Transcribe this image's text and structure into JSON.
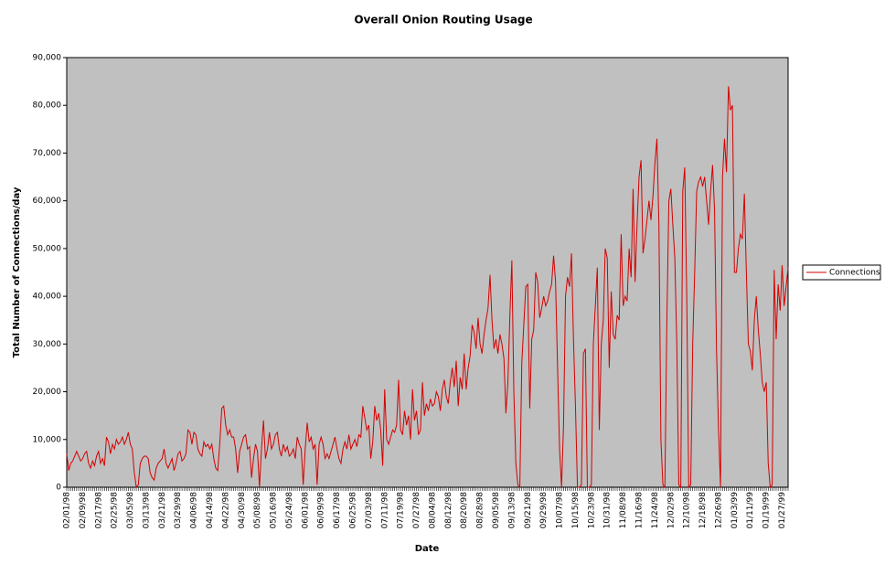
{
  "chart_data": {
    "type": "line",
    "title": "Overall Onion Routing Usage",
    "x_label": "Date",
    "y_label": "Total Number of Connections/day",
    "ylim": [
      0,
      90000
    ],
    "yticks": [
      0,
      {
        "value": 10000,
        "label": "10,000"
      },
      {
        "value": 20000,
        "label": "20,000"
      },
      {
        "value": 30000,
        "label": "30,000"
      },
      {
        "value": 40000,
        "label": "40,000"
      },
      {
        "value": 50000,
        "label": "50,000"
      },
      {
        "value": 60000,
        "label": "60,000"
      },
      {
        "value": 70000,
        "label": "70,000"
      },
      {
        "value": 80000,
        "label": "80,000"
      },
      {
        "value": 90000,
        "label": "90,000"
      }
    ],
    "legend": "right",
    "categories": [
      "02/01/98",
      null,
      null,
      null,
      null,
      null,
      null,
      null,
      "02/09/98",
      null,
      null,
      null,
      null,
      null,
      null,
      null,
      "02/17/98",
      null,
      null,
      null,
      null,
      null,
      null,
      null,
      "02/25/98",
      null,
      null,
      null,
      null,
      null,
      null,
      null,
      "03/05/98",
      null,
      null,
      null,
      null,
      null,
      null,
      null,
      "03/13/98",
      null,
      null,
      null,
      null,
      null,
      null,
      null,
      "03/21/98",
      null,
      null,
      null,
      null,
      null,
      null,
      null,
      "03/29/98",
      null,
      null,
      null,
      null,
      null,
      null,
      null,
      "04/06/98",
      null,
      null,
      null,
      null,
      null,
      null,
      null,
      "04/14/98",
      null,
      null,
      null,
      null,
      null,
      null,
      null,
      "04/22/98",
      null,
      null,
      null,
      null,
      null,
      null,
      null,
      "04/30/98",
      null,
      null,
      null,
      null,
      null,
      null,
      null,
      "05/08/98",
      null,
      null,
      null,
      null,
      null,
      null,
      null,
      "05/16/98",
      null,
      null,
      null,
      null,
      null,
      null,
      null,
      "05/24/98",
      null,
      null,
      null,
      null,
      null,
      null,
      null,
      "06/01/98",
      null,
      null,
      null,
      null,
      null,
      null,
      null,
      "06/09/98",
      null,
      null,
      null,
      null,
      null,
      null,
      null,
      "06/17/98",
      null,
      null,
      null,
      null,
      null,
      null,
      null,
      "06/25/98",
      null,
      null,
      null,
      null,
      null,
      null,
      null,
      "07/03/98",
      null,
      null,
      null,
      null,
      null,
      null,
      null,
      "07/11/98",
      null,
      null,
      null,
      null,
      null,
      null,
      null,
      "07/19/98",
      null,
      null,
      null,
      null,
      null,
      null,
      null,
      "07/27/98",
      null,
      null,
      null,
      null,
      null,
      null,
      null,
      "08/04/98",
      null,
      null,
      null,
      null,
      null,
      null,
      null,
      "08/12/98",
      null,
      null,
      null,
      null,
      null,
      null,
      null,
      "08/20/98",
      null,
      null,
      null,
      null,
      null,
      null,
      null,
      "08/28/98",
      null,
      null,
      null,
      null,
      null,
      null,
      null,
      "09/05/98",
      null,
      null,
      null,
      null,
      null,
      null,
      null,
      "09/13/98",
      null,
      null,
      null,
      null,
      null,
      null,
      null,
      "09/21/98",
      null,
      null,
      null,
      null,
      null,
      null,
      null,
      "09/29/98",
      null,
      null,
      null,
      null,
      null,
      null,
      null,
      "10/07/98",
      null,
      null,
      null,
      null,
      null,
      null,
      null,
      "10/15/98",
      null,
      null,
      null,
      null,
      null,
      null,
      null,
      "10/23/98",
      null,
      null,
      null,
      null,
      null,
      null,
      null,
      "10/31/98",
      null,
      null,
      null,
      null,
      null,
      null,
      null,
      "11/08/98",
      null,
      null,
      null,
      null,
      null,
      null,
      null,
      "11/16/98",
      null,
      null,
      null,
      null,
      null,
      null,
      null,
      "11/24/98",
      null,
      null,
      null,
      null,
      null,
      null,
      null,
      "12/02/98",
      null,
      null,
      null,
      null,
      null,
      null,
      null,
      "12/10/98",
      null,
      null,
      null,
      null,
      null,
      null,
      null,
      "12/18/98",
      null,
      null,
      null,
      null,
      null,
      null,
      null,
      "12/26/98",
      null,
      null,
      null,
      null,
      null,
      null,
      null,
      "01/03/99",
      null,
      null,
      null,
      null,
      null,
      null,
      null,
      "01/11/99",
      null,
      null,
      null,
      null,
      null,
      null,
      null,
      "01/19/99",
      null,
      null,
      null,
      null,
      null,
      null,
      null,
      "01/27/99",
      null,
      null,
      null
    ],
    "series": [
      {
        "name": "Connections",
        "color": "#d40000",
        "values": [
          7000,
          3500,
          5000,
          5500,
          6500,
          7500,
          6500,
          5500,
          6000,
          7000,
          7500,
          5000,
          4000,
          5500,
          4500,
          6500,
          7500,
          5000,
          6000,
          4500,
          10500,
          9500,
          7000,
          9000,
          8000,
          10000,
          9000,
          9500,
          10500,
          9000,
          10000,
          11500,
          9000,
          8000,
          3000,
          0,
          500,
          5000,
          6000,
          6500,
          6500,
          6000,
          3000,
          2000,
          1500,
          4000,
          5000,
          5500,
          6000,
          8000,
          5000,
          4000,
          5000,
          6000,
          3500,
          5000,
          7000,
          7500,
          5500,
          6000,
          7000,
          12000,
          11500,
          9000,
          11500,
          11000,
          8000,
          7000,
          6500,
          9500,
          8500,
          9000,
          8000,
          9000,
          6000,
          4000,
          3500,
          9000,
          16500,
          17000,
          13000,
          11000,
          12000,
          10500,
          10500,
          8000,
          3000,
          7500,
          9000,
          10500,
          11000,
          8000,
          8500,
          2000,
          6000,
          9000,
          7500,
          0,
          8000,
          14000,
          6000,
          8000,
          11500,
          8000,
          9000,
          11000,
          11500,
          8000,
          6500,
          9000,
          7500,
          8500,
          6500,
          7000,
          8000,
          6000,
          10500,
          9000,
          8000,
          500,
          8000,
          13500,
          9500,
          10500,
          8000,
          9000,
          500,
          9000,
          10500,
          9000,
          6000,
          7000,
          6000,
          7500,
          9000,
          10500,
          8000,
          6000,
          5000,
          8000,
          9500,
          8000,
          11000,
          8000,
          9000,
          10000,
          8500,
          11000,
          10500,
          17000,
          14500,
          12000,
          13000,
          6000,
          9500,
          17000,
          14000,
          15500,
          12000,
          4500,
          20500,
          10000,
          9000,
          10500,
          12000,
          11500,
          13000,
          22500,
          12000,
          11000,
          16000,
          13000,
          15000,
          10000,
          20500,
          14000,
          16000,
          11000,
          12000,
          22000,
          15000,
          17500,
          16000,
          18500,
          17000,
          17500,
          20000,
          19000,
          16000,
          20500,
          22500,
          19000,
          17500,
          22000,
          25000,
          21000,
          26500,
          17000,
          23000,
          20500,
          28000,
          20500,
          25000,
          27500,
          34000,
          32500,
          29000,
          35500,
          30000,
          28000,
          32000,
          35000,
          37500,
          44500,
          35000,
          29000,
          31000,
          28000,
          32000,
          30000,
          27000,
          15500,
          22000,
          36000,
          47500,
          20000,
          5000,
          500,
          0,
          26000,
          34000,
          42000,
          42500,
          16500,
          31000,
          33000,
          45000,
          43000,
          35500,
          37500,
          40000,
          38000,
          39000,
          41000,
          42500,
          48500,
          43000,
          25000,
          8000,
          0,
          13000,
          40000,
          44000,
          42000,
          49000,
          31000,
          17000,
          0,
          0,
          500,
          28000,
          29000,
          0,
          0,
          500,
          30000,
          38000,
          46000,
          12000,
          30000,
          35000,
          50000,
          48000,
          25000,
          41000,
          32000,
          31000,
          36000,
          35000,
          53000,
          38000,
          40000,
          39000,
          50000,
          44000,
          62500,
          43000,
          55000,
          65000,
          68500,
          49000,
          52000,
          56000,
          60000,
          56000,
          61000,
          68000,
          73000,
          55000,
          10000,
          500,
          0,
          35000,
          60000,
          62500,
          55000,
          48000,
          30000,
          500,
          0,
          62000,
          67000,
          40000,
          0,
          500,
          30000,
          45000,
          62000,
          64000,
          65000,
          63000,
          65000,
          60000,
          55000,
          62000,
          67500,
          58000,
          28500,
          12000,
          0,
          65000,
          73000,
          66000,
          84000,
          79000,
          80000,
          45000,
          45000,
          50000,
          53000,
          52000,
          61500,
          45000,
          30000,
          28500,
          24500,
          35000,
          40000,
          33000,
          28000,
          22000,
          20000,
          22000,
          5000,
          0,
          500,
          45500,
          31000,
          42500,
          37000,
          46500,
          38000,
          42000,
          46000
        ]
      }
    ]
  }
}
